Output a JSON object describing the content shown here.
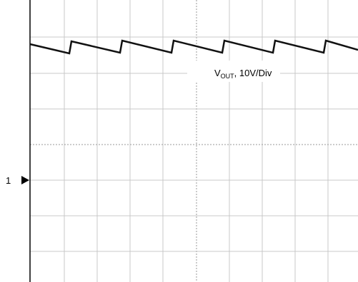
{
  "marker": {
    "label": "1"
  },
  "annotation": {
    "prefix": "V",
    "subscript": "OUT",
    "suffix": ", 10V/Div"
  }
}
